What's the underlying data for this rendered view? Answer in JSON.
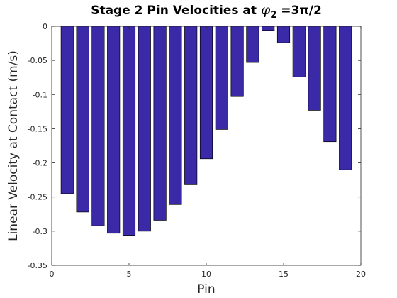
{
  "chart_data": {
    "type": "bar",
    "title": "Stage 2 Pin Velocities at ",
    "title_symbol": "φ",
    "title_subscript": "2",
    "title_tail": " =3π/2",
    "xlabel": "Pin",
    "ylabel": "Linear Velocity at Contact (m/s)",
    "x": [
      1,
      2,
      3,
      4,
      5,
      6,
      7,
      8,
      9,
      10,
      11,
      12,
      13,
      14,
      15,
      16,
      17,
      18,
      19
    ],
    "values": [
      -0.245,
      -0.272,
      -0.292,
      -0.303,
      -0.306,
      -0.3,
      -0.284,
      -0.261,
      -0.232,
      -0.194,
      -0.151,
      -0.103,
      -0.053,
      -0.006,
      -0.024,
      -0.074,
      -0.123,
      -0.169,
      -0.21
    ],
    "xlim": [
      0,
      20
    ],
    "ylim": [
      -0.35,
      0
    ],
    "xticks": [
      0,
      5,
      10,
      15,
      20
    ],
    "xtick_labels": [
      "0",
      "5",
      "10",
      "15",
      "20"
    ],
    "yticks": [
      0,
      -0.05,
      -0.1,
      -0.15,
      -0.2,
      -0.25,
      -0.3,
      -0.35
    ],
    "ytick_labels": [
      "0",
      "-0.05",
      "-0.1",
      "-0.15",
      "-0.2",
      "-0.25",
      "-0.3",
      "-0.35"
    ],
    "grid": false,
    "bar_color": "#3a2aa8",
    "bar_edge_color": "#000000"
  }
}
